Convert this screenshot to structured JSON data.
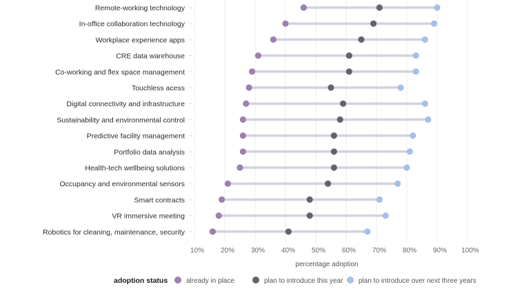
{
  "chart_data": {
    "type": "dumbbell",
    "title": "",
    "xlabel": "percentage adoption",
    "ylabel": "",
    "xlim": [
      10,
      100
    ],
    "x_ticks": [
      "10%",
      "20%",
      "30%",
      "40%",
      "50%",
      "60%",
      "70%",
      "80%",
      "90%",
      "100%"
    ],
    "x_tick_values": [
      10,
      20,
      30,
      40,
      50,
      60,
      70,
      80,
      90,
      100
    ],
    "grid": "vertical",
    "legend_position": "bottom",
    "categories": [
      "Remote-working technology",
      "In-office collaboration technology",
      "Workplace experience apps",
      "CRE data warehouse",
      "Co-working and flex space management",
      "Touchless acess",
      "Digital connectivity and infrastructure",
      "Sustainability and environmental control",
      "Predictive facility management",
      "Portfolio data analysis",
      "Health-tech wellbeing solutions",
      "Occupancy and environmental sensors",
      "Smart contracts",
      "VR immersive meeting",
      "Robotics for cleaning, maintenance, security"
    ],
    "series": [
      {
        "name": "already in place",
        "color": "#9b80b0",
        "values": [
          46,
          40,
          36,
          31,
          29,
          28,
          27,
          26,
          26,
          26,
          25,
          21,
          19,
          18,
          16
        ]
      },
      {
        "name": "plan to introduce this year",
        "color": "#5f666b",
        "values": [
          71,
          69,
          65,
          61,
          61,
          55,
          59,
          58,
          56,
          56,
          56,
          54,
          48,
          48,
          41
        ]
      },
      {
        "name": "plan to introduce over next three years",
        "color": "#a3c0e6",
        "values": [
          90,
          89,
          86,
          83,
          83,
          78,
          86,
          87,
          82,
          81,
          80,
          77,
          71,
          73,
          67
        ]
      }
    ],
    "connector_color": "#d2d2dc",
    "legend_title": "adoption status"
  }
}
